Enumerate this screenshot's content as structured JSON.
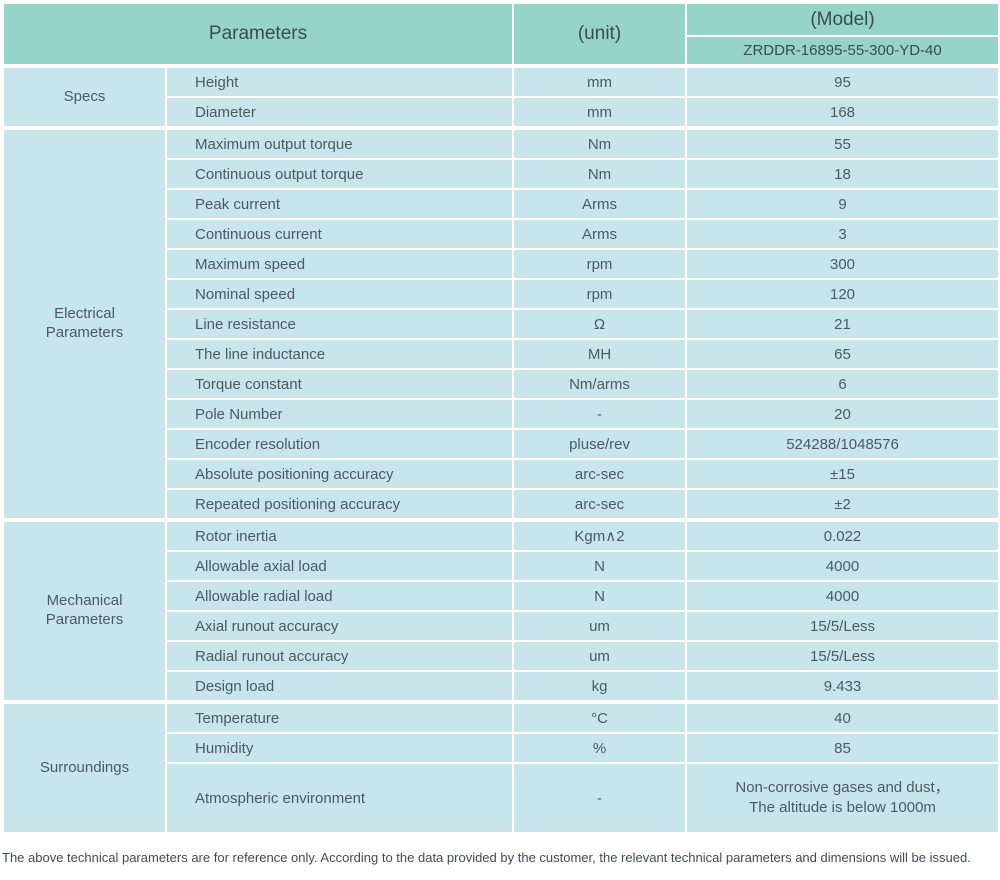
{
  "colors": {
    "header_bg": "#96D4C8",
    "row_bg": "#C9E5EC",
    "grid_line": "#FFFFFF",
    "header_text": "#3C4B4E",
    "body_text": "#4B5A61"
  },
  "header": {
    "parameters_label": "Parameters",
    "unit_label": "(unit)",
    "model_label": "(Model)",
    "model_value": "ZRDDR-16895-55-300-YD-40"
  },
  "sections": [
    {
      "name": "Specs",
      "rows": [
        {
          "param": "Height",
          "unit": "mm",
          "value": "95"
        },
        {
          "param": "Diameter",
          "unit": "mm",
          "value": "168"
        }
      ]
    },
    {
      "name": "Electrical\nParameters",
      "rows": [
        {
          "param": "Maximum output torque",
          "unit": "Nm",
          "value": "55"
        },
        {
          "param": "Continuous output torque",
          "unit": "Nm",
          "value": "18"
        },
        {
          "param": "Peak current",
          "unit": "Arms",
          "value": "9"
        },
        {
          "param": "Continuous current",
          "unit": "Arms",
          "value": "3"
        },
        {
          "param": "Maximum speed",
          "unit": "rpm",
          "value": "300"
        },
        {
          "param": "Nominal speed",
          "unit": "rpm",
          "value": "120"
        },
        {
          "param": "Line resistance",
          "unit": "Ω",
          "value": "21"
        },
        {
          "param": "The line inductance",
          "unit": "MH",
          "value": "65"
        },
        {
          "param": "Torque constant",
          "unit": "Nm/arms",
          "value": "6"
        },
        {
          "param": "Pole Number",
          "unit": "-",
          "value": "20"
        },
        {
          "param": "Encoder resolution",
          "unit": "pluse/rev",
          "value": "524288/1048576"
        },
        {
          "param": "Absolute positioning accuracy",
          "unit": "arc-sec",
          "value": "±15"
        },
        {
          "param": "Repeated positioning accuracy",
          "unit": "arc-sec",
          "value": "±2"
        }
      ]
    },
    {
      "name": "Mechanical\nParameters",
      "rows": [
        {
          "param": "Rotor inertia",
          "unit": "Kgm∧2",
          "value": "0.022"
        },
        {
          "param": "Allowable axial load",
          "unit": "N",
          "value": "4000"
        },
        {
          "param": "Allowable radial load",
          "unit": "N",
          "value": "4000"
        },
        {
          "param": "Axial runout accuracy",
          "unit": "um",
          "value": "15/5/Less"
        },
        {
          "param": "Radial runout accuracy",
          "unit": "um",
          "value": "15/5/Less"
        },
        {
          "param": "Design load",
          "unit": "kg",
          "value": "9.433"
        }
      ]
    },
    {
      "name": "Surroundings",
      "rows": [
        {
          "param": "Temperature",
          "unit": "°C",
          "value": "40"
        },
        {
          "param": "Humidity",
          "unit": "%",
          "value": "85"
        },
        {
          "param": "Atmospheric environment",
          "unit": "-",
          "value": "Non-corrosive gases and dust，\nThe altitude is below 1000m"
        }
      ]
    }
  ],
  "footer": {
    "note": "The above technical parameters are for reference only. According to the data provided by the customer, the relevant technical parameters and dimensions will be issued."
  }
}
